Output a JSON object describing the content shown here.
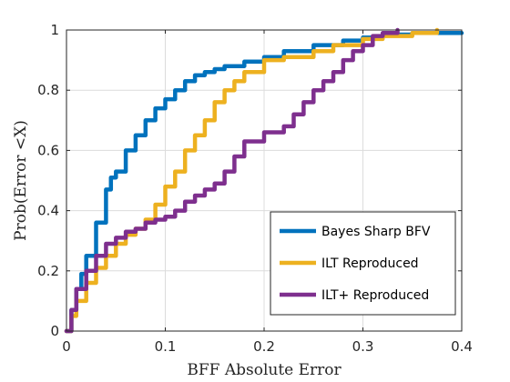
{
  "chart_data": {
    "type": "line",
    "title": "",
    "xlabel": "BFF Absolute Error",
    "ylabel": "Prob(Error <X)",
    "xlim": [
      0,
      0.4
    ],
    "ylim": [
      0,
      1
    ],
    "x_ticks": [
      "0",
      "0.1",
      "0.2",
      "0.3",
      "0.4"
    ],
    "y_ticks": [
      "0",
      "0.2",
      "0.4",
      "0.6",
      "0.8",
      "1"
    ],
    "grid": true,
    "legend_position": "bottom-right",
    "series": [
      {
        "name": "Bayes Sharp BFV",
        "color": "#0072BD",
        "x": [
          0,
          0.005,
          0.01,
          0.015,
          0.02,
          0.03,
          0.04,
          0.045,
          0.05,
          0.06,
          0.07,
          0.08,
          0.09,
          0.1,
          0.11,
          0.12,
          0.13,
          0.14,
          0.15,
          0.16,
          0.18,
          0.2,
          0.22,
          0.25,
          0.28,
          0.3,
          0.32,
          0.35,
          0.4
        ],
        "y": [
          0,
          0.07,
          0.14,
          0.19,
          0.25,
          0.36,
          0.47,
          0.51,
          0.53,
          0.6,
          0.65,
          0.7,
          0.74,
          0.77,
          0.8,
          0.83,
          0.85,
          0.86,
          0.87,
          0.88,
          0.895,
          0.91,
          0.93,
          0.95,
          0.965,
          0.975,
          0.985,
          0.99,
          0.99
        ]
      },
      {
        "name": "ILT Reproduced",
        "color": "#EDB120",
        "x": [
          0,
          0.005,
          0.01,
          0.02,
          0.03,
          0.04,
          0.05,
          0.06,
          0.07,
          0.08,
          0.09,
          0.1,
          0.11,
          0.12,
          0.13,
          0.14,
          0.15,
          0.16,
          0.17,
          0.18,
          0.2,
          0.22,
          0.25,
          0.27,
          0.3,
          0.32,
          0.35,
          0.375
        ],
        "y": [
          0,
          0.05,
          0.1,
          0.16,
          0.21,
          0.25,
          0.29,
          0.32,
          0.34,
          0.37,
          0.42,
          0.48,
          0.53,
          0.6,
          0.65,
          0.7,
          0.76,
          0.8,
          0.83,
          0.86,
          0.9,
          0.91,
          0.93,
          0.95,
          0.97,
          0.98,
          0.99,
          1.0
        ]
      },
      {
        "name": "ILT+ Reproduced",
        "color": "#7E2F8E",
        "x": [
          0,
          0.005,
          0.01,
          0.02,
          0.03,
          0.04,
          0.05,
          0.06,
          0.07,
          0.08,
          0.09,
          0.1,
          0.11,
          0.12,
          0.13,
          0.14,
          0.15,
          0.16,
          0.17,
          0.18,
          0.2,
          0.22,
          0.23,
          0.24,
          0.25,
          0.26,
          0.27,
          0.28,
          0.29,
          0.3,
          0.31,
          0.32,
          0.335
        ],
        "y": [
          0,
          0.07,
          0.14,
          0.2,
          0.25,
          0.29,
          0.31,
          0.33,
          0.34,
          0.36,
          0.37,
          0.38,
          0.4,
          0.43,
          0.45,
          0.47,
          0.49,
          0.53,
          0.58,
          0.63,
          0.66,
          0.68,
          0.72,
          0.76,
          0.8,
          0.83,
          0.86,
          0.9,
          0.93,
          0.95,
          0.98,
          0.99,
          1.0
        ]
      }
    ]
  }
}
